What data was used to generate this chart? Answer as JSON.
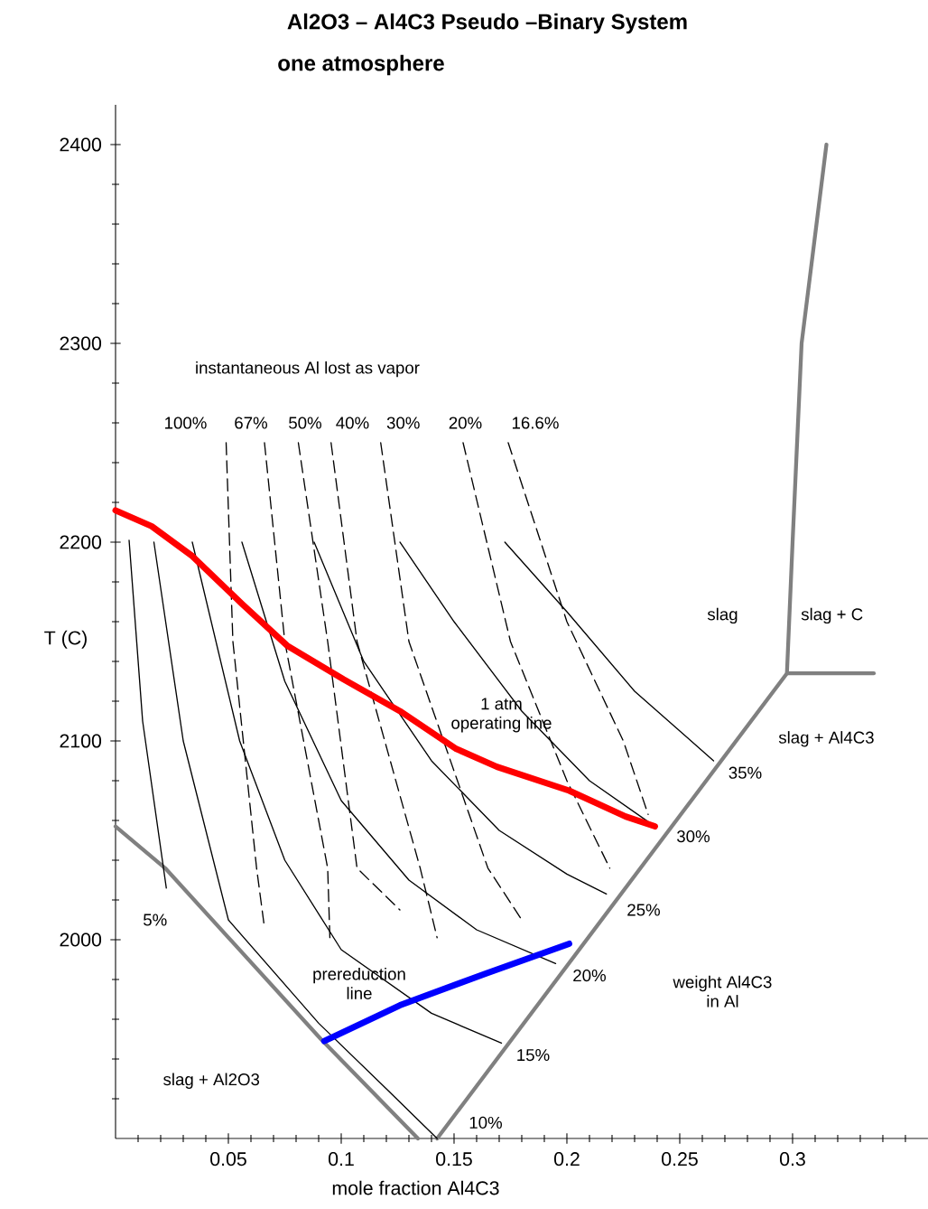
{
  "chart_data": {
    "type": "line",
    "title": "Al2O3 – Al4C3 Pseudo –Binary System",
    "subtitle": "one atmosphere",
    "xlabel": "mole fraction Al4C3",
    "ylabel": "T (C)",
    "marker": "none",
    "xlim": [
      0,
      0.36
    ],
    "ylim": [
      1900,
      2420
    ],
    "xticks": [
      {
        "value": 0.01,
        "label": null
      },
      {
        "value": 0.02,
        "label": null
      },
      {
        "value": 0.03,
        "label": null
      },
      {
        "value": 0.04,
        "label": null
      },
      0.05,
      {
        "value": 0.06,
        "label": null
      },
      {
        "value": 0.07,
        "label": null
      },
      {
        "value": 0.08,
        "label": null
      },
      {
        "value": 0.09,
        "label": null
      },
      0.1,
      {
        "value": 0.11,
        "label": null
      },
      {
        "value": 0.12,
        "label": null
      },
      {
        "value": 0.13,
        "label": null
      },
      {
        "value": 0.14,
        "label": null
      },
      0.15,
      {
        "value": 0.16,
        "label": null
      },
      {
        "value": 0.17,
        "label": null
      },
      {
        "value": 0.18,
        "label": null
      },
      {
        "value": 0.19,
        "label": null
      },
      0.2,
      {
        "value": 0.21,
        "label": null
      },
      {
        "value": 0.22,
        "label": null
      },
      {
        "value": 0.23,
        "label": null
      },
      {
        "value": 0.24,
        "label": null
      },
      0.25,
      {
        "value": 0.26,
        "label": null
      },
      {
        "value": 0.27,
        "label": null
      },
      {
        "value": 0.28,
        "label": null
      },
      {
        "value": 0.29,
        "label": null
      },
      0.3,
      {
        "value": 0.31,
        "label": null
      },
      {
        "value": 0.32,
        "label": null
      },
      {
        "value": 0.33,
        "label": null
      },
      {
        "value": 0.34,
        "label": null
      },
      {
        "value": 0.35,
        "label": null
      }
    ],
    "yticks": [
      {
        "value": 1920,
        "label": null
      },
      {
        "value": 1940,
        "label": null
      },
      {
        "value": 1960,
        "label": null
      },
      {
        "value": 1980,
        "label": null
      },
      2000,
      {
        "value": 2020,
        "label": null
      },
      {
        "value": 2040,
        "label": null
      },
      {
        "value": 2060,
        "label": null
      },
      {
        "value": 2080,
        "label": null
      },
      2100,
      {
        "value": 2120,
        "label": null
      },
      {
        "value": 2140,
        "label": null
      },
      {
        "value": 2160,
        "label": null
      },
      {
        "value": 2180,
        "label": null
      },
      2200,
      {
        "value": 2220,
        "label": null
      },
      {
        "value": 2240,
        "label": null
      },
      {
        "value": 2260,
        "label": null
      },
      {
        "value": 2280,
        "label": null
      },
      2300,
      {
        "value": 2320,
        "label": null
      },
      {
        "value": 2340,
        "label": null
      },
      {
        "value": 2360,
        "label": null
      },
      {
        "value": 2380,
        "label": null
      },
      2400
    ],
    "series": [
      {
        "color": "#808080",
        "line_style": "solid",
        "x": [
          0,
          0.022,
          0.091,
          0.134
        ],
        "values": [
          2057,
          2036,
          1950,
          1900
        ]
      },
      {
        "color": "#808080",
        "line_style": "solid",
        "x": [
          0.1425,
          0.2975,
          0.3,
          0.304,
          0.315
        ],
        "values": [
          1900,
          2134,
          2200,
          2300,
          2400
        ]
      },
      {
        "color": "#808080",
        "line_style": "solid",
        "x": [
          0.2975,
          0.336
        ],
        "values": [
          2134,
          2134
        ]
      },
      {
        "color": "#000000",
        "line_style": "solid",
        "x": [
          0.006,
          0.012,
          0.0225
        ],
        "values": [
          2201,
          2110,
          2026
        ]
      },
      {
        "color": "#000000",
        "line_style": "solid",
        "x": [
          0.017,
          0.03,
          0.05,
          0.09,
          0.12,
          0.1425
        ],
        "values": [
          2200,
          2100,
          2010,
          1958,
          1925,
          1900
        ]
      },
      {
        "color": "#000000",
        "line_style": "solid",
        "x": [
          0.034,
          0.055,
          0.075,
          0.1,
          0.14,
          0.171
        ],
        "values": [
          2200,
          2100,
          2040,
          1995,
          1963,
          1948
        ]
      },
      {
        "color": "#000000",
        "line_style": "solid",
        "x": [
          0.056,
          0.075,
          0.1,
          0.13,
          0.16,
          0.195
        ],
        "values": [
          2200,
          2130,
          2070,
          2030,
          2005,
          1988
        ]
      },
      {
        "color": "#000000",
        "line_style": "solid",
        "x": [
          0.088,
          0.11,
          0.14,
          0.17,
          0.2,
          0.2175
        ],
        "values": [
          2200,
          2140,
          2090,
          2055,
          2033,
          2023
        ]
      },
      {
        "color": "#000000",
        "line_style": "solid",
        "x": [
          0.126,
          0.15,
          0.18,
          0.21,
          0.239
        ],
        "values": [
          2200,
          2160,
          2115,
          2080,
          2057
        ]
      },
      {
        "color": "#000000",
        "line_style": "solid",
        "x": [
          0.1725,
          0.2,
          0.23,
          0.265
        ],
        "values": [
          2200,
          2165,
          2125,
          2090
        ]
      },
      {
        "color": "#000000",
        "line_style": "dashed",
        "x": [
          0.049,
          0.052,
          0.0625,
          0.066
        ],
        "values": [
          2250,
          2150,
          2036,
          2006
        ]
      },
      {
        "color": "#000000",
        "line_style": "dashed",
        "x": [
          0.066,
          0.075,
          0.094,
          0.095
        ],
        "values": [
          2250,
          2150,
          2036,
          2000
        ]
      },
      {
        "color": "#000000",
        "line_style": "dashed",
        "x": [
          0.081,
          0.094,
          0.107,
          0.126
        ],
        "values": [
          2250,
          2150,
          2036,
          2015
        ]
      },
      {
        "color": "#000000",
        "line_style": "dashed",
        "x": [
          0.0955,
          0.107,
          0.135,
          0.1425
        ],
        "values": [
          2250,
          2150,
          2036,
          2001
        ]
      },
      {
        "color": "#000000",
        "line_style": "dashed",
        "x": [
          0.1175,
          0.13,
          0.165,
          0.18
        ],
        "values": [
          2250,
          2150,
          2036,
          2010
        ]
      },
      {
        "color": "#000000",
        "line_style": "dashed",
        "x": [
          0.154,
          0.175,
          0.2,
          0.219
        ],
        "values": [
          2250,
          2150,
          2080,
          2036
        ]
      },
      {
        "color": "#000000",
        "line_style": "dashed",
        "x": [
          0.174,
          0.2,
          0.225,
          0.236
        ],
        "values": [
          2250,
          2160,
          2100,
          2063
        ]
      },
      {
        "color": "#ff0000",
        "line_style": "solid",
        "x": [
          0,
          0.016,
          0.034,
          0.056,
          0.076,
          0.101,
          0.126,
          0.151,
          0.169,
          0.201,
          0.226,
          0.239
        ],
        "values": [
          2216,
          2208,
          2193,
          2169,
          2148,
          2131,
          2115,
          2096,
          2087,
          2075,
          2062,
          2057
        ]
      },
      {
        "color": "#0000ff",
        "line_style": "solid",
        "x": [
          0.0925,
          0.126,
          0.164,
          0.201
        ],
        "values": [
          1949,
          1967,
          1983,
          1998
        ]
      }
    ],
    "annotations": [
      "instantaneous Al lost as vapor",
      "100%",
      "67%",
      "50%",
      "40%",
      "30%",
      "20%",
      "16.6%",
      "1 atm operating line",
      "prereduction line",
      "slag",
      "slag + C",
      "slag + Al4C3",
      "weight Al4C3 in Al",
      "slag + Al2O3",
      "5%",
      "10%",
      "15%",
      "20%",
      "25%",
      "30%",
      "35%"
    ]
  }
}
